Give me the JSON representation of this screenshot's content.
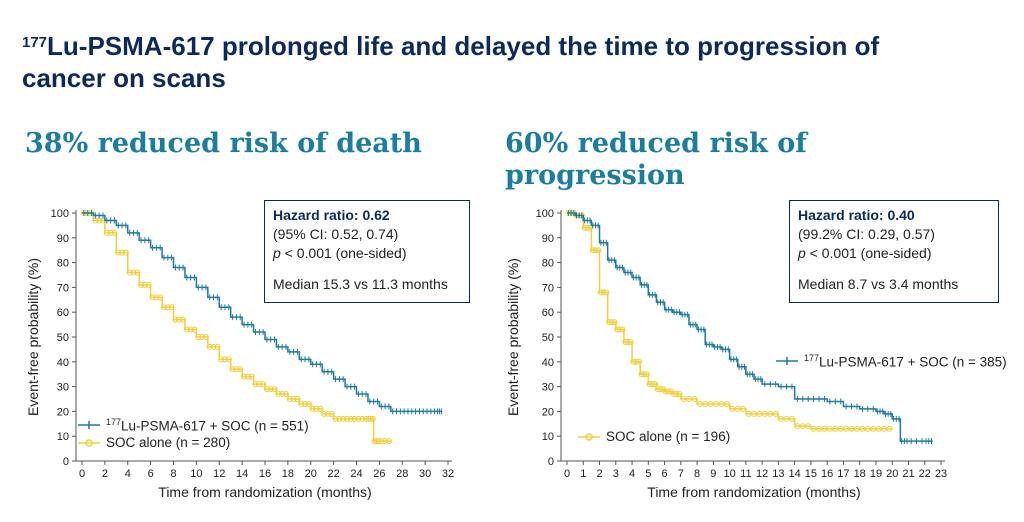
{
  "title": {
    "sup": "177",
    "text": "Lu-PSMA-617 prolonged life and delayed the time to progression of cancer on scans"
  },
  "panels": [
    {
      "subheading": "38% reduced risk of death",
      "hr_box": {
        "label": "Hazard ratio: ",
        "value": "0.62",
        "ci": "(95% CI: 0.52, 0.74)",
        "p_sym": "p",
        "p_rest": " < 0.001 (one-sided)",
        "median": "Median 15.3 vs 11.3 months"
      },
      "legend": [
        {
          "sup": "177",
          "text": "Lu-PSMA-617 + SOC (n = 551)",
          "color": "#1e7ca0"
        },
        {
          "sup": "",
          "text": "SOC alone (n = 280)",
          "color": "#f2cf3b"
        }
      ]
    },
    {
      "subheading": "60% reduced risk of progression",
      "hr_box": {
        "label": "Hazard ratio: ",
        "value": "0.40",
        "ci": "(99.2% CI: 0.29, 0.57)",
        "p_sym": "p",
        "p_rest": " < 0.001 (one-sided)",
        "median": "Median 8.7 vs 3.4 months"
      },
      "legend": [
        {
          "sup": "177",
          "text": "Lu-PSMA-617 + SOC (n = 385)",
          "color": "#1e7ca0"
        },
        {
          "sup": "",
          "text": "SOC alone (n = 196)",
          "color": "#f2cf3b"
        }
      ]
    }
  ],
  "chart_data": [
    {
      "type": "line",
      "xlabel": "Time from randomization (months)",
      "ylabel": "Event-free probability (%)",
      "xlim": [
        0,
        32
      ],
      "ylim": [
        0,
        100
      ],
      "xticks": [
        0,
        2,
        4,
        6,
        8,
        10,
        12,
        14,
        16,
        18,
        20,
        22,
        24,
        26,
        28,
        30,
        32
      ],
      "yticks": [
        0,
        10,
        20,
        30,
        40,
        50,
        60,
        70,
        80,
        90,
        100
      ],
      "series": [
        {
          "name": "177Lu-PSMA-617 + SOC (n = 551)",
          "color": "#1e7ca0",
          "x": [
            0,
            1,
            2,
            3,
            4,
            5,
            6,
            7,
            8,
            9,
            10,
            11,
            12,
            13,
            14,
            15,
            16,
            17,
            18,
            19,
            20,
            21,
            22,
            23,
            24,
            25,
            26,
            27,
            28,
            29,
            30,
            31,
            31.5
          ],
          "y": [
            100,
            99,
            97,
            95,
            92,
            89,
            86,
            82,
            78,
            74,
            70,
            66,
            62,
            58,
            55,
            52,
            49,
            46,
            44,
            41,
            39,
            36,
            33,
            30,
            27,
            24,
            22,
            20,
            20,
            20,
            20,
            20,
            20
          ]
        },
        {
          "name": "SOC alone (n = 280)",
          "color": "#f2cf3b",
          "x": [
            0,
            1,
            2,
            3,
            4,
            5,
            6,
            7,
            8,
            9,
            10,
            11,
            12,
            13,
            14,
            15,
            16,
            17,
            18,
            19,
            20,
            21,
            22,
            23,
            24,
            25,
            25.5,
            26,
            27
          ],
          "y": [
            100,
            97,
            92,
            84,
            76,
            71,
            66,
            62,
            57,
            53,
            50,
            46,
            41,
            37,
            34,
            31,
            29,
            27,
            25,
            23,
            21,
            19,
            17,
            17,
            17,
            17,
            8,
            8,
            8
          ]
        }
      ]
    },
    {
      "type": "line",
      "xlabel": "Time from randomization (months)",
      "ylabel": "Event-free probability (%)",
      "xlim": [
        0,
        23
      ],
      "ylim": [
        0,
        100
      ],
      "xticks": [
        0,
        1,
        2,
        3,
        4,
        5,
        6,
        7,
        8,
        9,
        10,
        11,
        12,
        13,
        14,
        15,
        16,
        17,
        18,
        19,
        20,
        21,
        22,
        23
      ],
      "yticks": [
        0,
        10,
        20,
        30,
        40,
        50,
        60,
        70,
        80,
        90,
        100
      ],
      "series": [
        {
          "name": "177Lu-PSMA-617 + SOC (n = 385)",
          "color": "#1e7ca0",
          "x": [
            0,
            0.5,
            1,
            1.5,
            2,
            2.5,
            3,
            3.5,
            4,
            4.5,
            5,
            5.5,
            6,
            6.5,
            7,
            7.5,
            8,
            8.5,
            9,
            9.5,
            10,
            10.5,
            11,
            11.5,
            12,
            13,
            14,
            15,
            16,
            17,
            18,
            19,
            19.5,
            20,
            20.5,
            21,
            22,
            22.5
          ],
          "y": [
            100,
            99,
            97,
            95,
            88,
            81,
            78,
            76,
            74,
            71,
            67,
            64,
            61,
            60,
            59,
            55,
            53,
            47,
            46,
            45,
            41,
            38,
            35,
            33,
            31,
            30,
            25,
            25,
            24,
            22,
            21,
            20,
            19,
            17,
            8,
            8,
            8,
            8
          ]
        },
        {
          "name": "SOC alone (n = 196)",
          "color": "#f2cf3b",
          "x": [
            0,
            0.5,
            1,
            1.5,
            2,
            2.5,
            3,
            3.5,
            4,
            4.5,
            5,
            5.5,
            6,
            6.5,
            7,
            8,
            9,
            10,
            11,
            12,
            13,
            14,
            15,
            16,
            17,
            18,
            19,
            20
          ],
          "y": [
            100,
            99,
            94,
            85,
            68,
            56,
            53,
            48,
            40,
            35,
            31,
            29,
            28,
            27,
            25,
            23,
            23,
            21,
            19,
            19,
            17,
            14,
            13,
            13,
            13,
            13,
            13,
            13
          ]
        }
      ]
    }
  ]
}
